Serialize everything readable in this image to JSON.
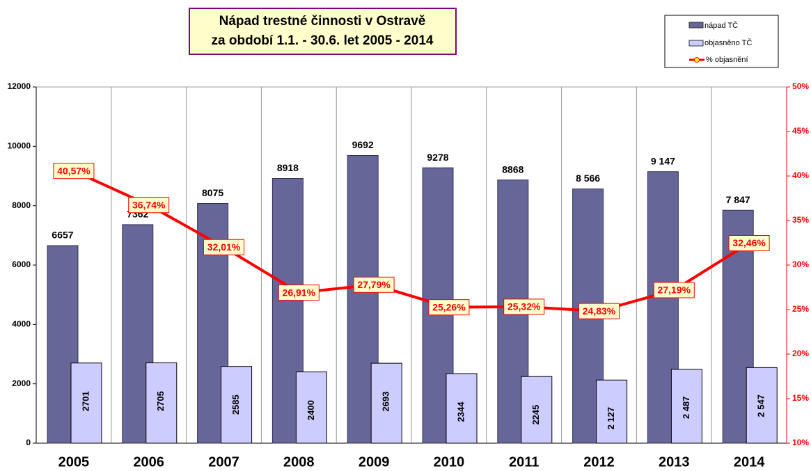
{
  "chart_data": {
    "type": "bar_line",
    "title": [
      "Nápad trestné činnosti v Ostravě",
      "za období 1.1. - 30.6.  let 2005 - 2014"
    ],
    "categories": [
      "2005",
      "2006",
      "2007",
      "2008",
      "2009",
      "2010",
      "2011",
      "2012",
      "2013",
      "2014"
    ],
    "series": [
      {
        "name": "nápad TČ",
        "color": "#666699",
        "values": [
          6657,
          7362,
          8075,
          8918,
          9692,
          9278,
          8868,
          8566,
          9147,
          7847
        ],
        "value_labels": [
          "6657",
          "7362",
          "8075",
          "8918",
          "9692",
          "9278",
          "8868",
          "8 566",
          "9 147",
          "7 847"
        ]
      },
      {
        "name": "objasněno TČ",
        "color": "#ccccff",
        "values": [
          2701,
          2705,
          2585,
          2400,
          2693,
          2344,
          2245,
          2127,
          2487,
          2547
        ],
        "value_labels": [
          "2701",
          "2705",
          "2585",
          "2400",
          "2693",
          "2344",
          "2245",
          "2 127",
          "2 487",
          "2 547"
        ]
      },
      {
        "name": "% objasnění",
        "color": "#ff0000",
        "axis": "y2",
        "values": [
          40.57,
          36.74,
          32.01,
          26.91,
          27.79,
          25.26,
          25.32,
          24.83,
          27.19,
          32.46
        ],
        "value_labels": [
          "40,57%",
          "36,74%",
          "32,01%",
          "26,91%",
          "27,79%",
          "25,26%",
          "25,32%",
          "24,83%",
          "27,19%",
          "32,46%"
        ]
      }
    ],
    "ylim": [
      0,
      12000
    ],
    "yticks": [
      0,
      2000,
      4000,
      6000,
      8000,
      10000,
      12000
    ],
    "y2lim": [
      10,
      50
    ],
    "y2ticks": [
      {
        "value": 10,
        "label": "10%"
      },
      {
        "value": 15,
        "label": "15%"
      },
      {
        "value": 20,
        "label": "20%"
      },
      {
        "value": 25,
        "label": "25%"
      },
      {
        "value": 30,
        "label": "30%"
      },
      {
        "value": 35,
        "label": "35%"
      },
      {
        "value": 40,
        "label": "40%"
      },
      {
        "value": 45,
        "label": "45%"
      },
      {
        "value": 50,
        "label": "50%"
      }
    ],
    "grid": true
  }
}
